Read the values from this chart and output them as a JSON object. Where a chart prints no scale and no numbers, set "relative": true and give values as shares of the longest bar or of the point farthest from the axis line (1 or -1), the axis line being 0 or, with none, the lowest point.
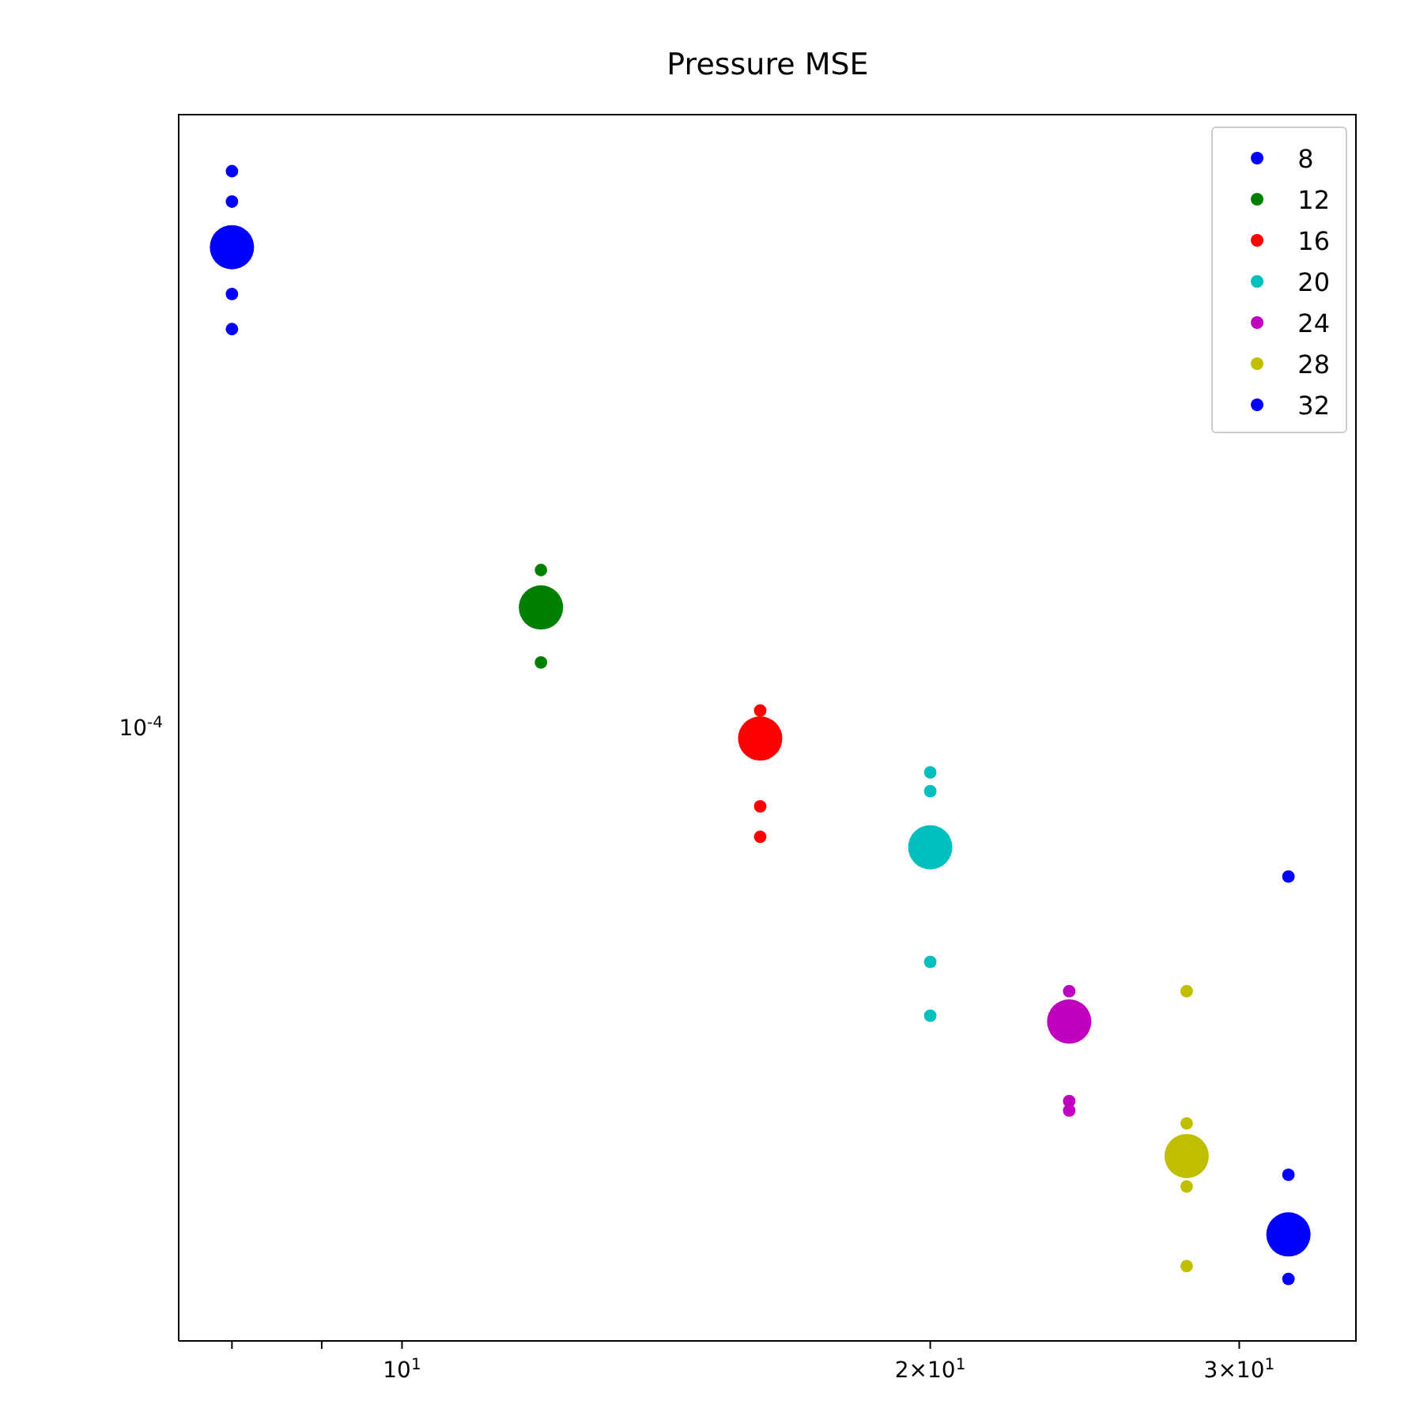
{
  "chart_data": {
    "type": "scatter",
    "title": "Pressure MSE",
    "log": "x",
    "relative": true,
    "grid": false,
    "legend": "top right",
    "marker": "circle",
    "xlim": [
      7.46,
      35
    ],
    "xticks": [
      {
        "value": 8,
        "label": null
      },
      {
        "value": 9,
        "label": null
      },
      {
        "value": 10,
        "label": "10$^{1}$"
      },
      {
        "value": 20,
        "label": "2×10$^{1}$"
      },
      {
        "value": 30,
        "label": "3×10$^{1}$"
      }
    ],
    "annotations": [
      "10$^{-4}$"
    ],
    "series": [
      {
        "name": "8",
        "color": "#0000ff",
        "x": [
          8,
          8,
          8,
          8,
          8
        ],
        "values": [
          1.0,
          0.974,
          0.935,
          0.895,
          0.865
        ],
        "sizes": [
          0.08,
          0.08,
          1,
          0.08,
          0.08
        ]
      },
      {
        "name": "12",
        "color": "#008000",
        "x": [
          12,
          12,
          12
        ],
        "values": [
          0.659,
          0.627,
          0.58
        ],
        "sizes": [
          0.08,
          1,
          0.08
        ]
      },
      {
        "name": "16",
        "color": "#ff0000",
        "x": [
          16,
          16,
          16,
          16
        ],
        "values": [
          0.539,
          0.515,
          0.457,
          0.431
        ],
        "sizes": [
          0.08,
          1,
          0.08,
          0.08
        ]
      },
      {
        "name": "20",
        "color": "#00bfbf",
        "x": [
          20,
          20,
          20,
          20,
          20
        ],
        "values": [
          0.486,
          0.47,
          0.422,
          0.324,
          0.278
        ],
        "sizes": [
          0.08,
          0.08,
          1,
          0.08,
          0.08
        ]
      },
      {
        "name": "24",
        "color": "#bf00bf",
        "x": [
          24,
          24,
          24,
          24
        ],
        "values": [
          0.299,
          0.273,
          0.205,
          0.197
        ],
        "sizes": [
          0.08,
          1,
          0.08,
          0.08
        ]
      },
      {
        "name": "28",
        "color": "#bfbf00",
        "x": [
          28,
          28,
          28,
          28,
          28
        ],
        "values": [
          0.299,
          0.186,
          0.158,
          0.132,
          0.064
        ],
        "sizes": [
          0.08,
          0.08,
          1,
          0.08,
          0.08
        ]
      },
      {
        "name": "32",
        "color": "#0000ff",
        "x": [
          32,
          32,
          32,
          32
        ],
        "values": [
          0.397,
          0.142,
          0.091,
          0.053
        ],
        "sizes": [
          0.08,
          0.08,
          1,
          0.08
        ]
      }
    ]
  }
}
